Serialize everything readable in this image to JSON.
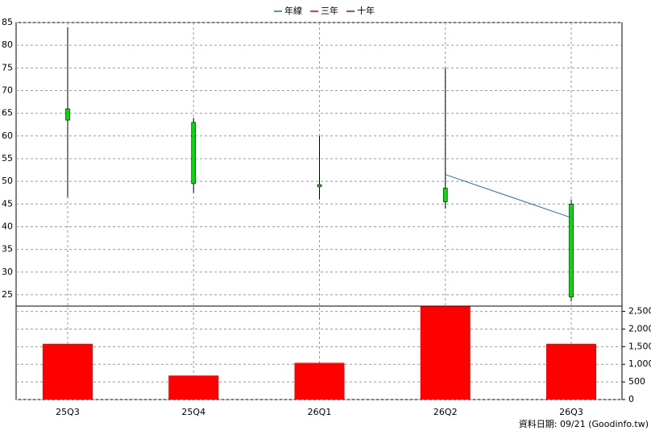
{
  "chart_data": {
    "type": "candlestick",
    "categories": [
      "25Q3",
      "25Q4",
      "26Q1",
      "26Q2",
      "26Q3"
    ],
    "open": [
      66,
      63,
      49.3,
      48.5,
      45
    ],
    "high": [
      84,
      64,
      60,
      75,
      46
    ],
    "low": [
      46.5,
      47.5,
      46,
      44,
      23.5
    ],
    "close": [
      63.5,
      49.5,
      48.8,
      45.5,
      24.5
    ],
    "candle_color": "#00e000",
    "series": [
      {
        "name": "年線",
        "color": "#1f6fc8",
        "values": [
          null,
          null,
          null,
          51.5,
          42
        ]
      },
      {
        "name": "三年",
        "color": "#e00000",
        "values": [
          null,
          null,
          null,
          null,
          null
        ]
      },
      {
        "name": "十年",
        "color": "#a0005a",
        "values": [
          null,
          null,
          null,
          null,
          null
        ]
      }
    ],
    "ylim": [
      22.5,
      85
    ],
    "yticks": [
      25,
      30,
      35,
      40,
      45,
      50,
      55,
      60,
      65,
      70,
      75,
      80,
      85
    ],
    "volume": {
      "type": "bar",
      "color": "#ff0000",
      "values": [
        1580,
        680,
        1040,
        2640,
        1580
      ],
      "y2lim": [
        0,
        2650
      ],
      "y2ticks": [
        0,
        {
          "value": 500,
          "label": "500"
        },
        {
          "value": 1000,
          "label": "1,000"
        },
        {
          "value": 1500,
          "label": "1,500"
        },
        {
          "value": 2000,
          "label": "2,000"
        },
        {
          "value": 2500,
          "label": "2,500"
        }
      ]
    },
    "grid": true,
    "source": "資料日期: 09/21  (Goodinfo.tw)"
  }
}
